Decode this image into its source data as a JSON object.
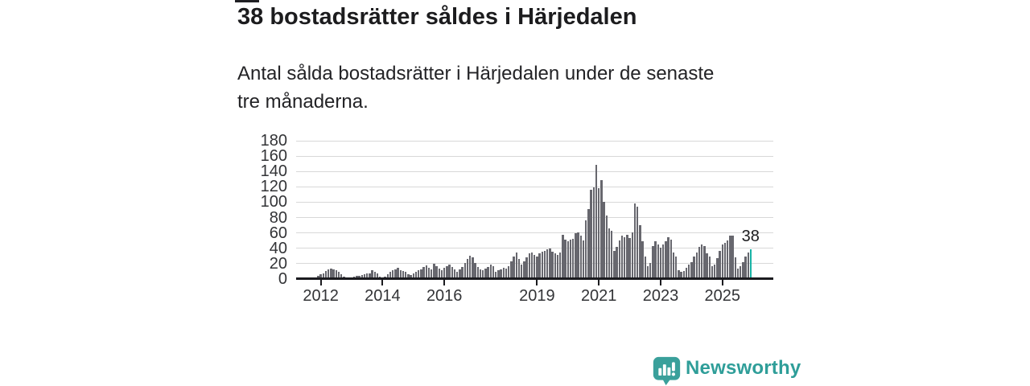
{
  "header": {
    "title": "38 bostadsrätter såldes i Härjedalen",
    "subtitle_lines": [
      "Antal sålda bostadsrätter i Härjedalen under de senaste",
      "tre månaderna."
    ]
  },
  "chart_data": {
    "type": "bar",
    "title": "38 bostadsrätter såldes i Härjedalen",
    "xlabel": "",
    "ylabel": "",
    "ylim": [
      0,
      180
    ],
    "grid": true,
    "yticks": [
      0,
      20,
      40,
      60,
      80,
      100,
      120,
      140,
      160,
      180
    ],
    "x_start": "2011-06",
    "x_interval": "month",
    "xticks": [
      {
        "label": "2012",
        "index": 7
      },
      {
        "label": "2014",
        "index": 31
      },
      {
        "label": "2016",
        "index": 55
      },
      {
        "label": "2019",
        "index": 91
      },
      {
        "label": "2021",
        "index": 115
      },
      {
        "label": "2023",
        "index": 139
      },
      {
        "label": "2025",
        "index": 163
      }
    ],
    "values": [
      0,
      0,
      1,
      0,
      1,
      1,
      3,
      5,
      6,
      9,
      12,
      13,
      12,
      10,
      8,
      5,
      2,
      1,
      1,
      1,
      2,
      3,
      3,
      4,
      5,
      6,
      6,
      10,
      8,
      6,
      2,
      1,
      2,
      5,
      8,
      10,
      12,
      14,
      11,
      9,
      8,
      5,
      4,
      6,
      8,
      10,
      12,
      15,
      17,
      14,
      12,
      19,
      16,
      13,
      11,
      14,
      16,
      18,
      15,
      12,
      8,
      12,
      15,
      20,
      25,
      29,
      27,
      20,
      15,
      12,
      10,
      13,
      15,
      18,
      16,
      8,
      10,
      12,
      14,
      13,
      16,
      22,
      28,
      33,
      25,
      18,
      22,
      27,
      32,
      34,
      30,
      28,
      32,
      35,
      36,
      38,
      39,
      35,
      32,
      30,
      34,
      57,
      50,
      48,
      50,
      51,
      59,
      60,
      55,
      49,
      75,
      90,
      115,
      118,
      148,
      117,
      128,
      99,
      82,
      65,
      62,
      36,
      41,
      49,
      55,
      53,
      57,
      52,
      60,
      97,
      93,
      69,
      48,
      28,
      16,
      20,
      42,
      48,
      44,
      40,
      44,
      48,
      53,
      50,
      34,
      28,
      11,
      8,
      9,
      14,
      18,
      21,
      28,
      33,
      41,
      44,
      42,
      32,
      28,
      16,
      18,
      26,
      36,
      44,
      46,
      49,
      55,
      56,
      27,
      13,
      16,
      21,
      28,
      34,
      38
    ],
    "bar_color": "#67676e",
    "highlight": {
      "position": "last",
      "value": 38,
      "label": "38",
      "color": "#18b2a5"
    },
    "legend": null
  },
  "branding": {
    "logo_text": "Newsworthy",
    "logo_icon": "newsworthy-speech-bubble-chart-icon",
    "brand_color": "#2f9e99"
  }
}
